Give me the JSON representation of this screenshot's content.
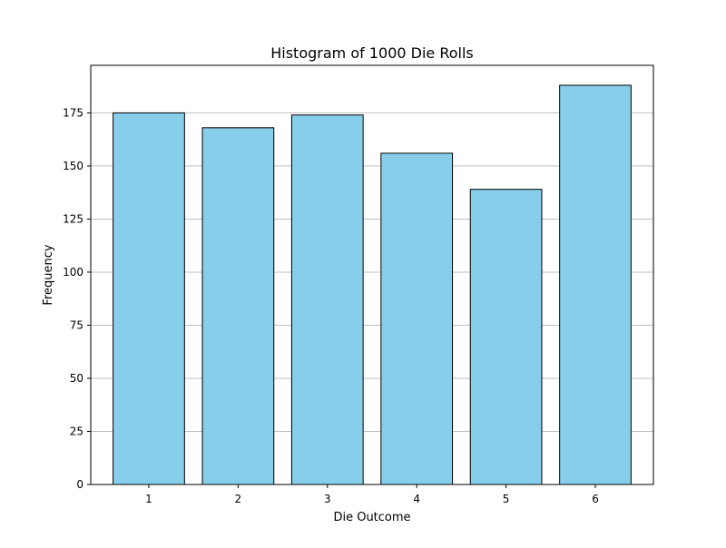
{
  "chart_data": {
    "type": "bar",
    "title": "Histogram of 1000 Die Rolls",
    "xlabel": "Die Outcome",
    "ylabel": "Frequency",
    "categories": [
      "1",
      "2",
      "3",
      "4",
      "5",
      "6"
    ],
    "values": [
      175,
      168,
      174,
      156,
      139,
      188
    ],
    "ylim": [
      0,
      197.4
    ],
    "yticks": [
      0,
      25,
      50,
      75,
      100,
      125,
      150,
      175
    ],
    "grid": "y-axis horizontal lines",
    "bar_color": "#87CEEB",
    "bar_edge_color": "#000000",
    "grid_color": "#bfbfbf"
  }
}
